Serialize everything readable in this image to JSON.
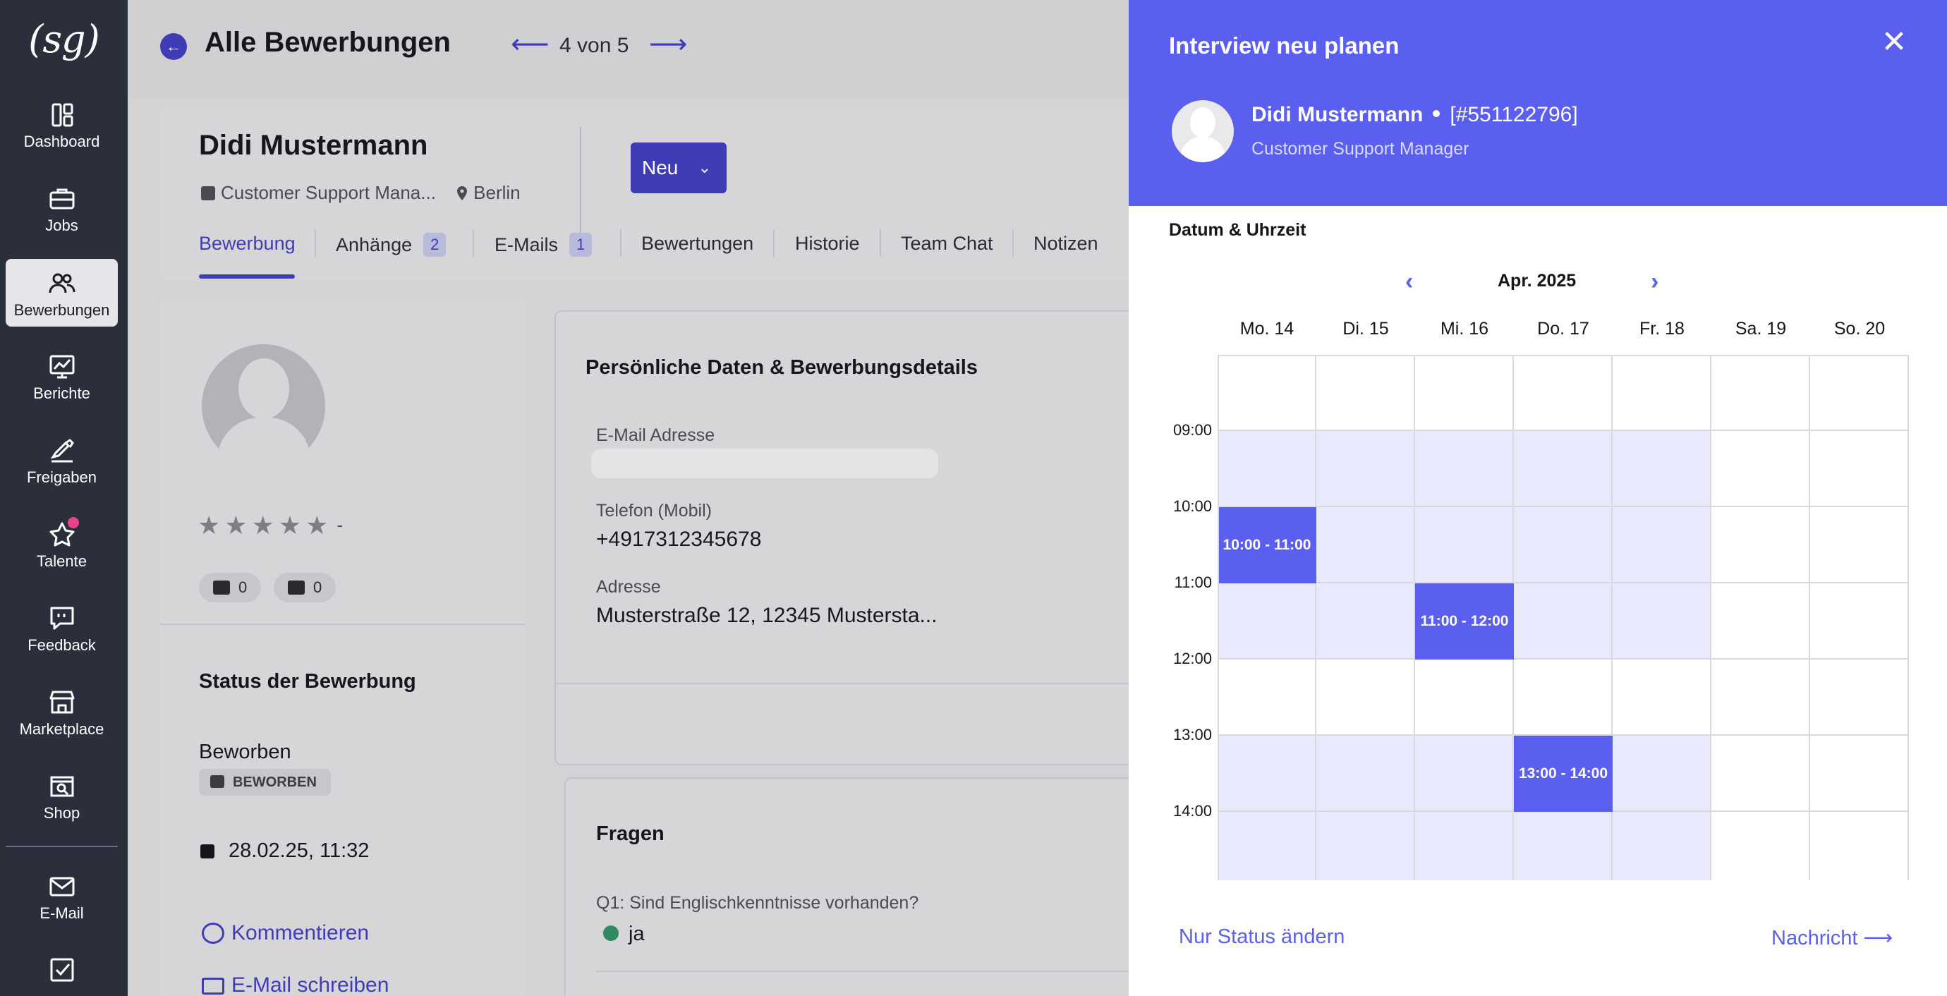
{
  "sidebar": {
    "logo": "(sg)",
    "items": [
      {
        "label": "Dashboard"
      },
      {
        "label": "Jobs"
      },
      {
        "label": "Bewerbungen"
      },
      {
        "label": "Berichte"
      },
      {
        "label": "Freigaben"
      },
      {
        "label": "Talente"
      },
      {
        "label": "Feedback"
      },
      {
        "label": "Marketplace"
      },
      {
        "label": "Shop"
      },
      {
        "label": "E-Mail"
      }
    ],
    "active_item": "Bewerbungen"
  },
  "header": {
    "title": "Alle Bewerbungen",
    "pager": "4 von 5"
  },
  "candidate": {
    "name": "Didi Mustermann",
    "role": "Customer Support Mana...",
    "location": "Berlin",
    "status_dropdown": "Neu"
  },
  "tabs": [
    {
      "label": "Bewerbung",
      "active": true
    },
    {
      "label": "Anhänge",
      "badge": "2"
    },
    {
      "label": "E-Mails",
      "badge": "1"
    },
    {
      "label": "Bewertungen"
    },
    {
      "label": "Historie"
    },
    {
      "label": "Team Chat"
    },
    {
      "label": "Notizen"
    }
  ],
  "profile": {
    "rating": "-",
    "upvotes": "0",
    "downvotes": "0",
    "status_title": "Status der Bewerbung",
    "status_value": "Beworben",
    "status_badge": "BEWORBEN",
    "date": "28.02.25, 11:32",
    "comment_link": "Kommentieren",
    "mail_link": "E-Mail schreiben"
  },
  "personal": {
    "title": "Persönliche Daten & Bewerbungsdetails",
    "email_label": "E-Mail Adresse",
    "phone_label": "Telefon (Mobil)",
    "phone_value": "+4917312345678",
    "address_label": "Adresse",
    "address_value": "Musterstraße 12, 12345 Mustersta..."
  },
  "questions": {
    "title": "Fragen",
    "q1": "Q1: Sind Englischkenntnisse vorhanden?",
    "a1": "ja"
  },
  "modal": {
    "title": "Interview neu planen",
    "candidate_name": "Didi Mustermann",
    "candidate_id": "[#551122796]",
    "candidate_role": "Customer Support Manager",
    "datetime_label": "Datum & Uhrzeit",
    "month": "Apr. 2025",
    "days": [
      "Mo. 14",
      "Di. 15",
      "Mi. 16",
      "Do. 17",
      "Fr. 18",
      "Sa. 19",
      "So. 20"
    ],
    "times": [
      "09:00",
      "10:00",
      "11:00",
      "12:00",
      "13:00",
      "14:00"
    ],
    "available_rows": [
      {
        "time": "09:00",
        "days": [
          "Mo. 14",
          "Di. 15",
          "Mi. 16",
          "Do. 17",
          "Fr. 18"
        ]
      },
      {
        "time": "10:00",
        "days": [
          "Mo. 14",
          "Di. 15",
          "Mi. 16",
          "Do. 17",
          "Fr. 18"
        ]
      },
      {
        "time": "11:00",
        "days": [
          "Mo. 14",
          "Di. 15",
          "Mi. 16",
          "Do. 17",
          "Fr. 18"
        ]
      },
      {
        "time": "13:00",
        "days": [
          "Mo. 14",
          "Di. 15",
          "Mi. 16",
          "Do. 17",
          "Fr. 18"
        ]
      },
      {
        "time": "14:00",
        "days": [
          "Mo. 14",
          "Di. 15",
          "Mi. 16",
          "Do. 17",
          "Fr. 18"
        ]
      }
    ],
    "slots": [
      {
        "day": "Mo. 14",
        "label": "10:00 - 11:00"
      },
      {
        "day": "Mi. 16",
        "label": "11:00 - 12:00"
      },
      {
        "day": "Do. 17",
        "label": "13:00 - 14:00"
      }
    ],
    "status_only_link": "Nur Status ändern",
    "message_button": "Nachricht"
  },
  "colors": {
    "sidebar_bg": "#2a2f3b",
    "accent": "#3f3db5",
    "modal_accent": "#5b5ff0",
    "available_cell": "#e8e9fd",
    "notification_dot": "#e8418e"
  }
}
